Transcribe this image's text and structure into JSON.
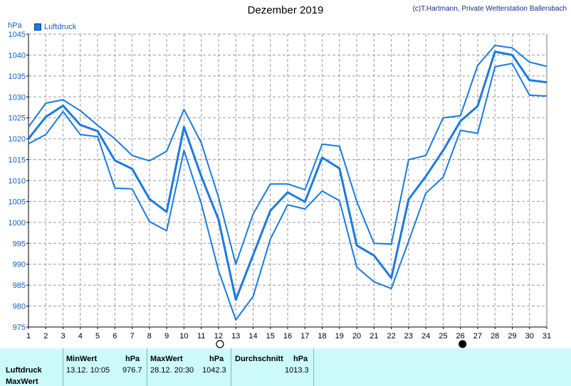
{
  "title": "Dezember 2019",
  "credit": "(c)T.Hartmann, Private Wetterstation Ballersbach",
  "unit": "hPa",
  "legend": "Luftdruck",
  "colors": {
    "series": "#1a7adf",
    "grid": "#9a9a9a",
    "axis": "#000000",
    "panel": "#ccfafa",
    "label": "#1060c0"
  },
  "chart_data": {
    "type": "line",
    "title": "Dezember 2019",
    "ylabel": "hPa",
    "ylim": [
      975,
      1045
    ],
    "yticks": [
      975,
      980,
      985,
      990,
      995,
      1000,
      1005,
      1010,
      1015,
      1020,
      1025,
      1030,
      1035,
      1040,
      1045
    ],
    "x": [
      1,
      2,
      3,
      4,
      5,
      6,
      7,
      8,
      9,
      10,
      11,
      12,
      13,
      14,
      15,
      16,
      17,
      18,
      19,
      20,
      21,
      22,
      23,
      24,
      25,
      26,
      27,
      28,
      29,
      30,
      31
    ],
    "grid": true,
    "legend": "top-left",
    "series": [
      {
        "name": "Luftdruck",
        "role": "mean",
        "values": [
          1020.0,
          1025.2,
          1027.9,
          1023.3,
          1021.8,
          1014.8,
          1012.8,
          1005.6,
          1002.5,
          1022.8,
          1011.0,
          1000.7,
          981.5,
          992.2,
          1002.8,
          1007.2,
          1004.9,
          1015.5,
          1012.9,
          994.5,
          992.1,
          986.7,
          1005.5,
          1011.0,
          1017.2,
          1024.2,
          1027.8,
          1040.8,
          1040.0,
          1034.0,
          1033.5
        ]
      },
      {
        "role": "max",
        "values": [
          1022.8,
          1028.5,
          1029.3,
          1026.7,
          1023.2,
          1020.0,
          1016.0,
          1014.7,
          1017.0,
          1027.0,
          1019.0,
          1006.0,
          990.0,
          1002.0,
          1009.2,
          1009.2,
          1007.8,
          1018.7,
          1018.2,
          1005.0,
          995.0,
          994.8,
          1015.0,
          1016.0,
          1025.0,
          1025.5,
          1037.5,
          1042.3,
          1041.7,
          1038.3,
          1037.3
        ]
      },
      {
        "role": "min",
        "values": [
          1018.8,
          1021.0,
          1026.5,
          1021.0,
          1020.5,
          1008.2,
          1008.0,
          1000.2,
          998.0,
          1017.2,
          1004.5,
          988.5,
          976.7,
          982.3,
          996.0,
          1004.2,
          1003.2,
          1007.5,
          1005.2,
          989.3,
          985.8,
          984.2,
          995.5,
          1007.0,
          1010.8,
          1022.0,
          1021.3,
          1037.2,
          1038.0,
          1030.4,
          1030.2
        ]
      }
    ]
  },
  "moon": {
    "full_day": 12,
    "new_day": 26
  },
  "stats": {
    "row_label": "Luftdruck",
    "row2_label": "MaxWert",
    "min_header": "MinWert",
    "max_header": "MaxWert",
    "unit": "hPa",
    "avg_header": "Durchschnitt",
    "min_time": "13.12.  10:05",
    "min_value": "976.7",
    "max_time": "28.12.  20:30",
    "max_value": "1042.3",
    "avg_value": "1013.3"
  }
}
